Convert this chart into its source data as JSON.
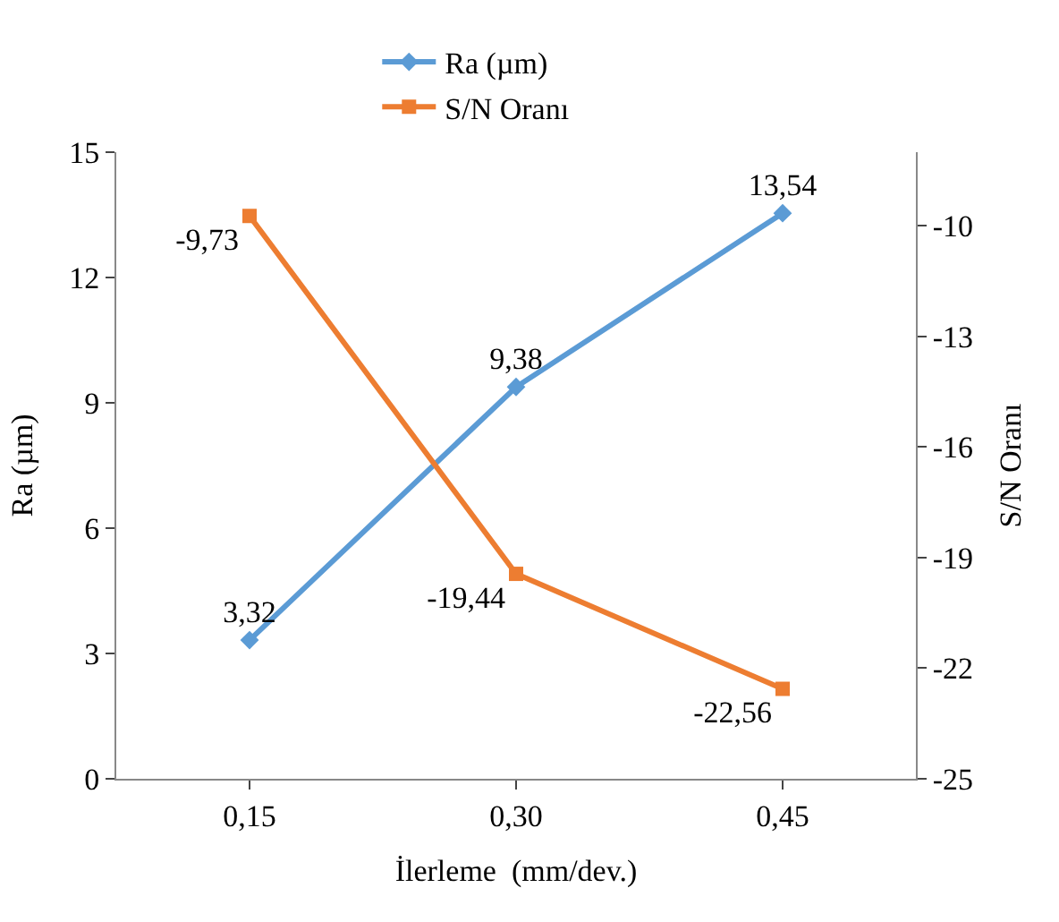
{
  "chart_data": {
    "type": "line",
    "xlabel": "İlerleme  (mm/dev.)",
    "ylabel": "Ra (µm)",
    "y2label": "S/N Oranı",
    "categories": [
      "0,15",
      "0,30",
      "0,45"
    ],
    "series": [
      {
        "name": "Ra (µm)",
        "color": "#5b9bd5",
        "values": [
          3.32,
          9.38,
          13.54
        ],
        "value_labels": [
          "3,32",
          "9,38",
          "13,54"
        ],
        "marker": "diamond"
      },
      {
        "name": "S/N Oranı",
        "color": "#ed7d31",
        "values": [
          -9.73,
          -19.44,
          -22.56
        ],
        "value_labels": [
          "-9,73",
          "-19,44",
          "-22,56"
        ],
        "axis": "y2",
        "marker": "square"
      }
    ],
    "ylim": [
      0,
      15
    ],
    "yticks": [
      0,
      3,
      6,
      9,
      12,
      15
    ],
    "y2lim": [
      -25,
      -8
    ],
    "y2ticks": [
      -25,
      -22,
      -19,
      -16,
      -13,
      -10
    ],
    "legend": "top",
    "line_style": "solid"
  }
}
